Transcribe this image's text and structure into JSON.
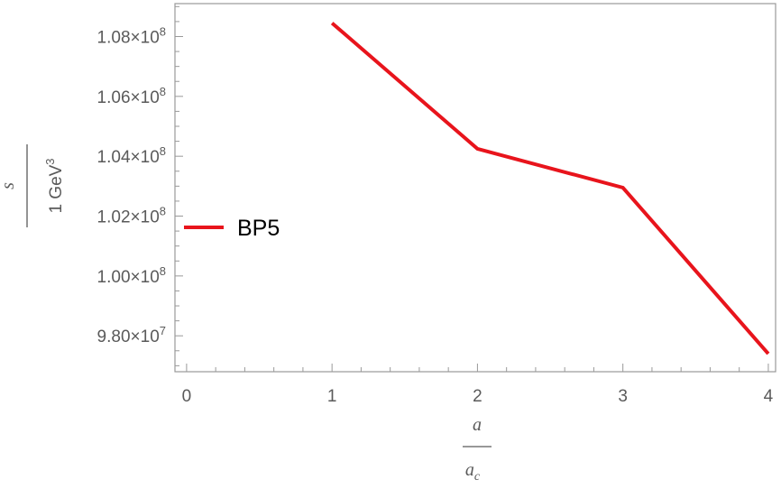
{
  "chart_data": {
    "type": "line",
    "x": [
      1,
      2,
      3,
      4
    ],
    "series": [
      {
        "name": "BP5",
        "color": "#e8141c",
        "values": [
          108450000,
          104250000,
          102950000,
          97400000
        ]
      }
    ],
    "xlim": [
      -0.08,
      4.05
    ],
    "ylim": [
      96800000,
      109100000
    ],
    "xticks": [
      0,
      1,
      2,
      3,
      4
    ],
    "yticks": [
      {
        "value": 98000000,
        "mantissa": "9.80",
        "exp": "7"
      },
      {
        "value": 100000000,
        "mantissa": "1.00",
        "exp": "8"
      },
      {
        "value": 102000000,
        "mantissa": "1.02",
        "exp": "8"
      },
      {
        "value": 104000000,
        "mantissa": "1.04",
        "exp": "8"
      },
      {
        "value": 106000000,
        "mantissa": "1.06",
        "exp": "8"
      },
      {
        "value": 108000000,
        "mantissa": "1.08",
        "exp": "8"
      }
    ],
    "tick_times": "×10",
    "xlabel": {
      "numerator": "a",
      "denominator_base": "a",
      "denominator_sub": "c"
    },
    "ylabel": {
      "numerator": "s",
      "denominator_base": "1 GeV",
      "denominator_sup": "3"
    },
    "legend": {
      "label": "BP5",
      "position": "left"
    },
    "grid": false,
    "frame_color": "#999999"
  }
}
